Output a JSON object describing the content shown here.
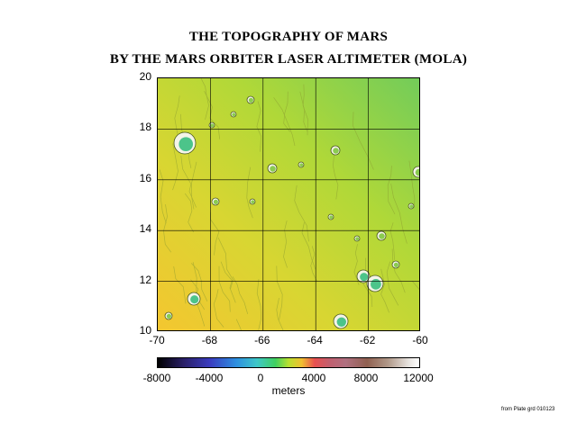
{
  "title": "THE TOPOGRAPHY OF MARS",
  "subtitle": "BY THE MARS ORBITER LASER ALTIMETER (MOLA)",
  "map": {
    "lon_range": [
      -70,
      -60
    ],
    "lat_range": [
      10,
      20
    ],
    "x_ticks": [
      "-70",
      "-68",
      "-66",
      "-64",
      "-62",
      "-60"
    ],
    "y_ticks": [
      "20",
      "18",
      "16",
      "14",
      "12",
      "10"
    ],
    "grid": true,
    "colors": {
      "low": "#f2cc30",
      "mid": "#c8dc32",
      "high": "#64c864"
    }
  },
  "colorbar": {
    "ticks": [
      "-8000",
      "-4000",
      "0",
      "4000",
      "8000",
      "12000"
    ],
    "label": "meters"
  },
  "credit": "from Plate grd 010123"
}
